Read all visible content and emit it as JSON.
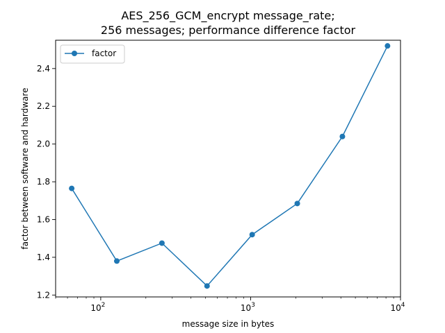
{
  "chart_data": {
    "type": "line",
    "title_line1": "AES_256_GCM_encrypt message_rate;",
    "title_line2": "256 messages; performance difference factor",
    "xlabel": "message size in bytes",
    "ylabel": "factor between software and hardware",
    "xscale": "log",
    "xlim": [
      50,
      10000
    ],
    "ylim": [
      1.19,
      2.55
    ],
    "grid": false,
    "legend_position": "top-left",
    "x_ticks": [
      {
        "value": 100,
        "base": "10",
        "exp": "2"
      },
      {
        "value": 1000,
        "base": "10",
        "exp": "3"
      },
      {
        "value": 10000,
        "base": "10",
        "exp": "4"
      }
    ],
    "y_ticks": [
      {
        "value": 1.2,
        "label": "1.2"
      },
      {
        "value": 1.4,
        "label": "1.4"
      },
      {
        "value": 1.6,
        "label": "1.6"
      },
      {
        "value": 1.8,
        "label": "1.8"
      },
      {
        "value": 2.0,
        "label": "2.0"
      },
      {
        "value": 2.2,
        "label": "2.2"
      },
      {
        "value": 2.4,
        "label": "2.4"
      }
    ],
    "series": [
      {
        "name": "factor",
        "color": "#1f77b4",
        "marker": "circle",
        "x": [
          64,
          128,
          256,
          512,
          1024,
          2048,
          4096,
          8192
        ],
        "y": [
          1.765,
          1.38,
          1.475,
          1.248,
          1.52,
          1.685,
          2.04,
          2.52
        ]
      }
    ]
  }
}
